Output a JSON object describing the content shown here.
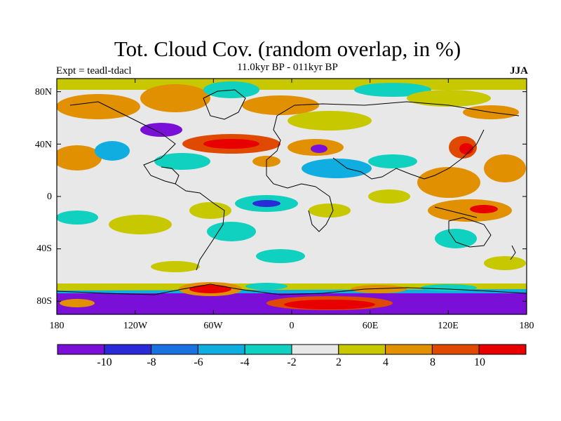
{
  "header": {
    "title": "Tot. Cloud Cov. (random overlap, in %)",
    "subtitle": "11.0kyr BP - 011kyr BP",
    "experiment": "Expt = teadl-tdacl",
    "season": "JJA"
  },
  "map": {
    "y_ticks": [
      "80N",
      "40N",
      "0",
      "40S",
      "80S"
    ],
    "x_ticks": [
      "180",
      "120W",
      "60W",
      "0",
      "60E",
      "120E",
      "180"
    ],
    "lon_range": [
      -180,
      180
    ],
    "lat_range": [
      -90,
      90
    ],
    "background_color": "#e8e8e8"
  },
  "colorbar": {
    "labels": [
      "-10",
      "-8",
      "-6",
      "-4",
      "-2",
      "2",
      "4",
      "8",
      "10"
    ],
    "colors": [
      "#7a10d8",
      "#2a2ad8",
      "#1a72e0",
      "#10aee0",
      "#10d0c0",
      "#e8e8e8",
      "#c8c800",
      "#e09000",
      "#e04a00",
      "#e80000"
    ]
  }
}
